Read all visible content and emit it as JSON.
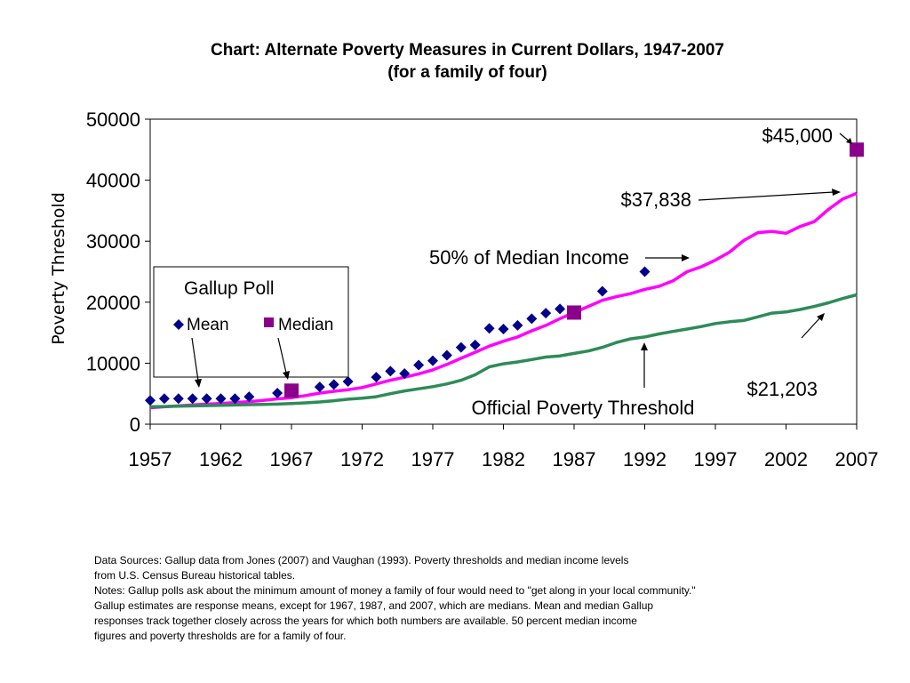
{
  "chart_data": {
    "type": "line",
    "title": "Chart: Alternate Poverty Measures in Current Dollars, 1947-2007",
    "subtitle": "(for a family of four)",
    "xlabel": "",
    "ylabel": "Poverty Threshold",
    "xlim": [
      1957,
      2007
    ],
    "ylim": [
      0,
      50000
    ],
    "x_ticks": [
      "1957",
      "1962",
      "1967",
      "1972",
      "1977",
      "1982",
      "1987",
      "1992",
      "1997",
      "2002",
      "2007"
    ],
    "y_ticks": [
      "0",
      "10000",
      "20000",
      "30000",
      "40000",
      "50000"
    ],
    "grid": false,
    "series": [
      {
        "name": "50% of Median Income",
        "kind": "line",
        "color": "#ff00ff",
        "x": [
          1957,
          1958,
          1959,
          1960,
          1961,
          1962,
          1963,
          1964,
          1965,
          1966,
          1967,
          1968,
          1969,
          1970,
          1971,
          1972,
          1973,
          1974,
          1975,
          1976,
          1977,
          1978,
          1979,
          1980,
          1981,
          1982,
          1983,
          1984,
          1985,
          1986,
          1987,
          1988,
          1989,
          1990,
          1991,
          1992,
          1993,
          1994,
          1995,
          1996,
          1997,
          1998,
          1999,
          2000,
          2001,
          2002,
          2003,
          2004,
          2005,
          2006,
          2007
        ],
        "y": [
          2700,
          2850,
          3000,
          3150,
          3300,
          3400,
          3550,
          3700,
          3900,
          4150,
          4350,
          4700,
          5100,
          5400,
          5650,
          6000,
          6600,
          7200,
          7700,
          8250,
          8900,
          9800,
          10800,
          11800,
          12800,
          13600,
          14300,
          15300,
          16200,
          17300,
          18300,
          19300,
          20300,
          20900,
          21400,
          22100,
          22600,
          23500,
          25000,
          25800,
          26900,
          28200,
          30100,
          31400,
          31600,
          31300,
          32400,
          33200,
          35200,
          36900,
          37838
        ]
      },
      {
        "name": "Official Poverty Threshold",
        "kind": "line",
        "color": "#2e8b57",
        "x": [
          1957,
          1958,
          1959,
          1960,
          1961,
          1962,
          1963,
          1964,
          1965,
          1966,
          1967,
          1968,
          1969,
          1970,
          1971,
          1972,
          1973,
          1974,
          1975,
          1976,
          1977,
          1978,
          1979,
          1980,
          1981,
          1982,
          1983,
          1984,
          1985,
          1986,
          1987,
          1988,
          1989,
          1990,
          1991,
          1992,
          1993,
          1994,
          1995,
          1996,
          1997,
          1998,
          1999,
          2000,
          2001,
          2002,
          2003,
          2004,
          2005,
          2006,
          2007
        ],
        "y": [
          2850,
          2900,
          2950,
          3000,
          3050,
          3100,
          3150,
          3200,
          3250,
          3300,
          3400,
          3500,
          3650,
          3850,
          4100,
          4250,
          4500,
          5000,
          5450,
          5800,
          6150,
          6600,
          7200,
          8100,
          9400,
          9900,
          10200,
          10600,
          11000,
          11200,
          11600,
          12000,
          12600,
          13400,
          14000,
          14300,
          14800,
          15200,
          15600,
          16000,
          16500,
          16800,
          17000,
          17600,
          18200,
          18400,
          18800,
          19300,
          19900,
          20600,
          21203
        ]
      },
      {
        "name": "Mean",
        "kind": "scatter",
        "marker": "diamond",
        "color": "#00008b",
        "x": [
          1957,
          1958,
          1959,
          1960,
          1961,
          1962,
          1963,
          1964,
          1966,
          1969,
          1970,
          1971,
          1973,
          1974,
          1975,
          1976,
          1977,
          1978,
          1979,
          1980,
          1981,
          1982,
          1983,
          1984,
          1985,
          1986,
          1989,
          1992
        ],
        "y": [
          3900,
          4200,
          4200,
          4200,
          4200,
          4200,
          4200,
          4500,
          5100,
          6100,
          6500,
          7000,
          7700,
          8700,
          8300,
          9700,
          10400,
          11300,
          12600,
          13000,
          15700,
          15600,
          16200,
          17300,
          18200,
          18900,
          21800,
          25000
        ]
      },
      {
        "name": "Median",
        "kind": "scatter",
        "marker": "square",
        "color": "#8b008b",
        "x": [
          1967,
          1987,
          2007
        ],
        "y": [
          5500,
          18300,
          45000
        ]
      }
    ],
    "legend": {
      "title": "Gallup Poll",
      "entries": [
        "Mean",
        "Median"
      ],
      "placement": "upper-left"
    },
    "annotations": {
      "median_2007": "$45,000",
      "fifty_pct_2007": "$37,838",
      "fifty_pct_label": "50% of Median Income",
      "official_2007": "$21,203",
      "official_label": "Official Poverty Threshold"
    }
  },
  "notes": [
    "Data Sources: Gallup data from Jones (2007) and Vaughan (1993).   Poverty thresholds and median income levels",
    "from U.S. Census Bureau historical tables.",
    "Notes: Gallup polls ask about the minimum amount of money a family of four would need to \"get along in your local community.\"",
    "Gallup estimates are response means, except for 1967, 1987, and 2007, which are medians.  Mean and median Gallup",
    "responses track together closely across the years for which both numbers are available. 50 percent median income",
    "figures and poverty thresholds are for a family of four."
  ]
}
